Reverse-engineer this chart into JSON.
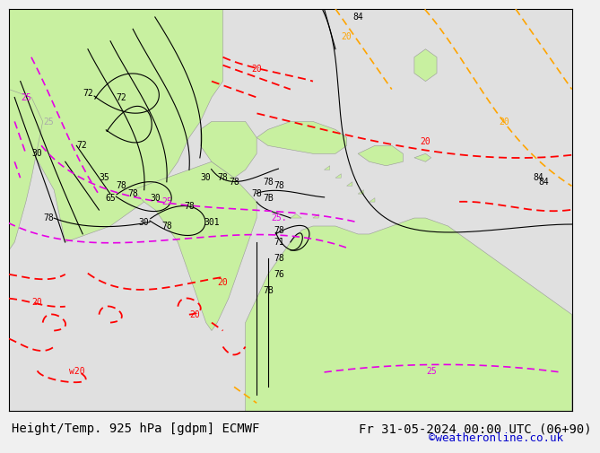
{
  "title_left": "Height/Temp. 925 hPa [gdpm] ECMWF",
  "title_right": "Fr 31-05-2024 00:00 UTC (06+90)",
  "credit": "©weatheronline.co.uk",
  "title_fontsize": 10,
  "credit_fontsize": 9,
  "credit_color": "#0000cc",
  "bg_color": "#e8e8e8",
  "land_color": "#c8f0a0",
  "ocean_color": "#e0e0e0",
  "coast_color": "#999999"
}
